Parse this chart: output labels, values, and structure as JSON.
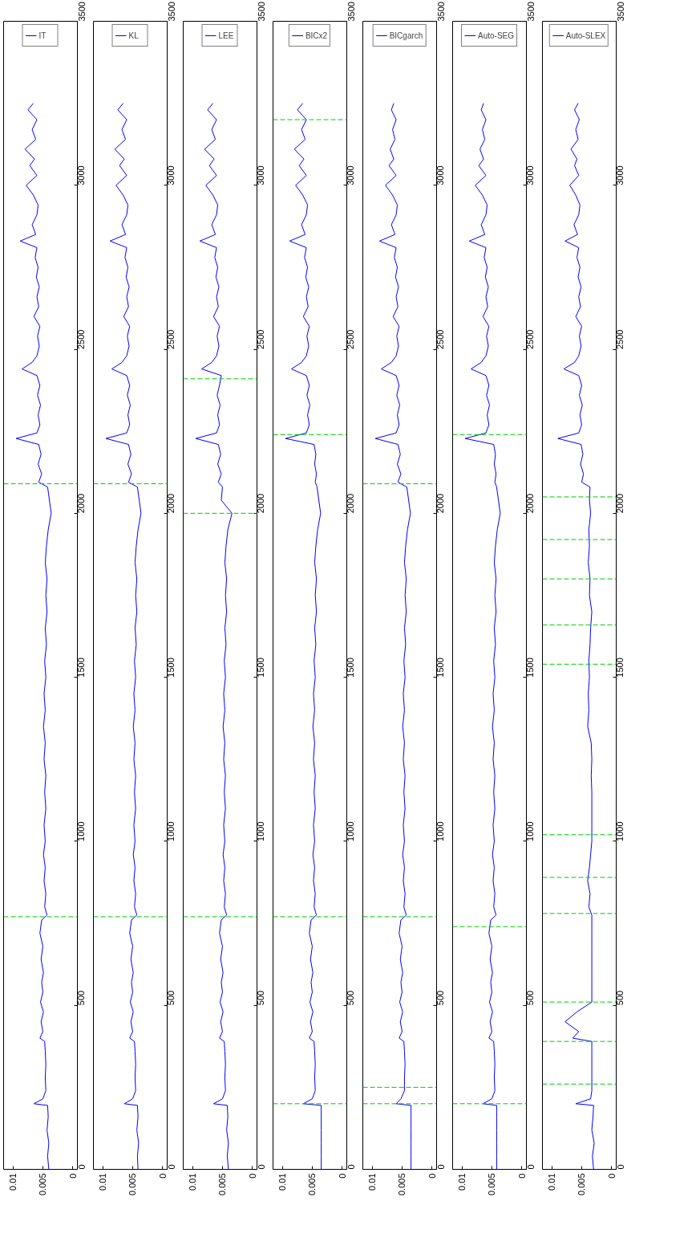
{
  "chart_data": [
    {
      "type": "line",
      "series": [
        {
          "name": "IT",
          "color": "#0000ff",
          "x": [
            0.004,
            0.0042,
            0.004,
            0.0043,
            0.0041,
            0.0042,
            0.0065,
            0.005,
            0.0045,
            0.0046,
            0.0045,
            0.0046,
            0.0047,
            0.0055,
            0.005,
            0.0053,
            0.0049,
            0.0054,
            0.005,
            0.0052,
            0.0049,
            0.0053,
            0.005,
            0.0055,
            0.0052,
            0.0043,
            0.0047,
            0.0045,
            0.0048,
            0.0046,
            0.0049,
            0.0046,
            0.0048,
            0.0045,
            0.0047,
            0.0045,
            0.0048,
            0.0046,
            0.0049,
            0.0046,
            0.0048,
            0.0045,
            0.0047,
            0.0044,
            0.0046,
            0.0043,
            0.0045,
            0.0043,
            0.0046,
            0.0044,
            0.0041,
            0.0036,
            0.0039,
            0.0042,
            0.0057,
            0.0052,
            0.0058,
            0.0053,
            0.0057,
            0.0095,
            0.006,
            0.0055,
            0.0058,
            0.0054,
            0.0059,
            0.0055,
            0.006,
            0.0085,
            0.0068,
            0.006,
            0.0056,
            0.0059,
            0.0055,
            0.0065,
            0.0057,
            0.006,
            0.0056,
            0.0061,
            0.0058,
            0.0063,
            0.006,
            0.0088,
            0.0062,
            0.0068,
            0.006,
            0.0058,
            0.0066,
            0.0078,
            0.006,
            0.0072,
            0.0064,
            0.008,
            0.0062,
            0.0068,
            0.006,
            0.0075,
            0.0066
          ],
          "values": [
            0,
            40,
            80,
            120,
            160,
            195,
            200,
            215,
            240,
            280,
            320,
            360,
            390,
            400,
            420,
            450,
            480,
            510,
            540,
            570,
            600,
            640,
            680,
            720,
            760,
            775,
            800,
            840,
            880,
            920,
            960,
            1000,
            1050,
            1100,
            1150,
            1200,
            1250,
            1300,
            1350,
            1400,
            1450,
            1500,
            1550,
            1600,
            1650,
            1700,
            1750,
            1800,
            1850,
            1900,
            1950,
            2000,
            2040,
            2080,
            2095,
            2120,
            2150,
            2180,
            2210,
            2228,
            2245,
            2270,
            2300,
            2330,
            2360,
            2390,
            2420,
            2440,
            2460,
            2480,
            2510,
            2540,
            2570,
            2600,
            2630,
            2660,
            2690,
            2720,
            2750,
            2780,
            2810,
            2830,
            2850,
            2880,
            2910,
            2940,
            2970,
            3000,
            3030,
            3060,
            3080,
            3110,
            3140,
            3170,
            3200,
            3230,
            3250
          ]
        }
      ],
      "xlim": [
        0.0116,
        -0.0008
      ],
      "xticks": [
        0.01,
        0.005,
        0
      ],
      "ylim": [
        0,
        3500
      ],
      "yticks": [
        0,
        500,
        1000,
        1500,
        2000,
        2500,
        3000,
        3500
      ],
      "ref_lines": [
        {
          "axis": "y",
          "value": 770,
          "color": "#00cc00",
          "line_style": "dashed"
        },
        {
          "axis": "y",
          "value": 2090,
          "color": "#00cc00",
          "line_style": "dashed"
        }
      ],
      "legend": "top",
      "line_style": "solid"
    },
    {
      "type": "line",
      "series": [
        {
          "name": "KL",
          "color": "#0000ff",
          "x": [
            0.0041,
            0.0042,
            0.004,
            0.0043,
            0.0041,
            0.0042,
            0.0064,
            0.005,
            0.0045,
            0.0046,
            0.0045,
            0.0046,
            0.0047,
            0.0055,
            0.005,
            0.0053,
            0.0049,
            0.0054,
            0.005,
            0.0052,
            0.0049,
            0.0053,
            0.005,
            0.0055,
            0.0052,
            0.0043,
            0.0047,
            0.0045,
            0.0048,
            0.0046,
            0.0049,
            0.0046,
            0.0048,
            0.0045,
            0.0047,
            0.0045,
            0.0048,
            0.0046,
            0.0049,
            0.0046,
            0.0048,
            0.0045,
            0.0047,
            0.0044,
            0.0046,
            0.0043,
            0.0045,
            0.0043,
            0.0046,
            0.0044,
            0.0041,
            0.0036,
            0.0039,
            0.0042,
            0.0057,
            0.0052,
            0.0058,
            0.0053,
            0.0057,
            0.0095,
            0.006,
            0.0055,
            0.0058,
            0.0054,
            0.0059,
            0.0055,
            0.006,
            0.0085,
            0.0068,
            0.006,
            0.0056,
            0.0059,
            0.0055,
            0.0065,
            0.0057,
            0.006,
            0.0056,
            0.0061,
            0.0058,
            0.0063,
            0.006,
            0.0088,
            0.0062,
            0.0068,
            0.006,
            0.0058,
            0.0066,
            0.0078,
            0.006,
            0.0072,
            0.0064,
            0.008,
            0.0062,
            0.0068,
            0.006,
            0.0075,
            0.0066
          ],
          "values": [
            0,
            40,
            80,
            120,
            160,
            195,
            200,
            215,
            240,
            280,
            320,
            360,
            390,
            400,
            420,
            450,
            480,
            510,
            540,
            570,
            600,
            640,
            680,
            720,
            760,
            775,
            800,
            840,
            880,
            920,
            960,
            1000,
            1050,
            1100,
            1150,
            1200,
            1250,
            1300,
            1350,
            1400,
            1450,
            1500,
            1550,
            1600,
            1650,
            1700,
            1750,
            1800,
            1850,
            1900,
            1950,
            2000,
            2040,
            2080,
            2095,
            2120,
            2150,
            2180,
            2210,
            2228,
            2245,
            2270,
            2300,
            2330,
            2360,
            2390,
            2420,
            2440,
            2460,
            2480,
            2510,
            2540,
            2570,
            2600,
            2630,
            2660,
            2690,
            2720,
            2750,
            2780,
            2810,
            2830,
            2850,
            2880,
            2910,
            2940,
            2970,
            3000,
            3030,
            3060,
            3080,
            3110,
            3140,
            3170,
            3200,
            3230,
            3250
          ]
        }
      ],
      "xlim": [
        0.0116,
        -0.0008
      ],
      "xticks": [
        0.01,
        0.005,
        0
      ],
      "ylim": [
        0,
        3500
      ],
      "yticks": [
        0,
        500,
        1000,
        1500,
        2000,
        2500,
        3000,
        3500
      ],
      "ref_lines": [
        {
          "axis": "y",
          "value": 770,
          "color": "#00cc00",
          "line_style": "dashed"
        },
        {
          "axis": "y",
          "value": 2090,
          "color": "#00cc00",
          "line_style": "dashed"
        }
      ],
      "legend": "top",
      "line_style": "solid"
    },
    {
      "type": "line",
      "series": [
        {
          "name": "LEE",
          "color": "#0000ff",
          "x": [
            0.004,
            0.0042,
            0.004,
            0.0043,
            0.0041,
            0.0042,
            0.0065,
            0.005,
            0.0045,
            0.0046,
            0.0045,
            0.0046,
            0.0047,
            0.0055,
            0.005,
            0.0053,
            0.0049,
            0.0054,
            0.005,
            0.0052,
            0.0049,
            0.0053,
            0.005,
            0.0055,
            0.0052,
            0.0043,
            0.0047,
            0.0045,
            0.0048,
            0.0046,
            0.0049,
            0.0046,
            0.0048,
            0.0045,
            0.0047,
            0.0045,
            0.0048,
            0.0046,
            0.0049,
            0.0046,
            0.0048,
            0.0045,
            0.0047,
            0.0044,
            0.0046,
            0.0043,
            0.0045,
            0.0043,
            0.0046,
            0.0044,
            0.0041,
            0.0034,
            0.0052,
            0.005,
            0.0057,
            0.0052,
            0.0058,
            0.0053,
            0.0057,
            0.0095,
            0.006,
            0.0055,
            0.0058,
            0.0054,
            0.0059,
            0.0055,
            0.0052,
            0.0085,
            0.0068,
            0.006,
            0.0056,
            0.0059,
            0.0055,
            0.0065,
            0.0057,
            0.006,
            0.0056,
            0.0061,
            0.0058,
            0.0063,
            0.006,
            0.0088,
            0.0062,
            0.0068,
            0.006,
            0.0058,
            0.0066,
            0.0078,
            0.006,
            0.0072,
            0.0064,
            0.008,
            0.0062,
            0.0068,
            0.006,
            0.0075,
            0.0066
          ],
          "values": [
            0,
            40,
            80,
            120,
            160,
            195,
            200,
            215,
            240,
            280,
            320,
            360,
            390,
            400,
            420,
            450,
            480,
            510,
            540,
            570,
            600,
            640,
            680,
            720,
            760,
            775,
            800,
            840,
            880,
            920,
            960,
            1000,
            1050,
            1100,
            1150,
            1200,
            1250,
            1300,
            1350,
            1400,
            1450,
            1500,
            1550,
            1600,
            1650,
            1700,
            1750,
            1800,
            1850,
            1900,
            1950,
            2000,
            2040,
            2080,
            2095,
            2120,
            2150,
            2180,
            2210,
            2228,
            2245,
            2270,
            2300,
            2330,
            2360,
            2390,
            2420,
            2440,
            2460,
            2480,
            2510,
            2540,
            2570,
            2600,
            2630,
            2660,
            2690,
            2720,
            2750,
            2780,
            2810,
            2830,
            2850,
            2880,
            2910,
            2940,
            2970,
            3000,
            3030,
            3060,
            3080,
            3110,
            3140,
            3170,
            3200,
            3230,
            3250
          ]
        }
      ],
      "xlim": [
        0.0116,
        -0.0008
      ],
      "xticks": [
        0.01,
        0.005,
        0
      ],
      "ylim": [
        0,
        3500
      ],
      "yticks": [
        0,
        500,
        1000,
        1500,
        2000,
        2500,
        3000,
        3500
      ],
      "ref_lines": [
        {
          "axis": "y",
          "value": 770,
          "color": "#00cc00",
          "line_style": "dashed"
        },
        {
          "axis": "y",
          "value": 2000,
          "color": "#00cc00",
          "line_style": "dashed"
        },
        {
          "axis": "y",
          "value": 2410,
          "color": "#00cc00",
          "line_style": "dashed"
        }
      ],
      "legend": "top",
      "line_style": "solid"
    },
    {
      "type": "line",
      "series": [
        {
          "name": "BICx2",
          "color": "#0000ff",
          "x": [
            0.0035,
            0.0035,
            0.0035,
            0.0035,
            0.0035,
            0.0035,
            0.0065,
            0.005,
            0.0045,
            0.0046,
            0.0045,
            0.0046,
            0.0047,
            0.0055,
            0.005,
            0.0053,
            0.0049,
            0.0054,
            0.005,
            0.0052,
            0.0049,
            0.0053,
            0.005,
            0.0055,
            0.0052,
            0.0043,
            0.0047,
            0.0045,
            0.0048,
            0.0046,
            0.0049,
            0.0046,
            0.0048,
            0.0045,
            0.0047,
            0.0045,
            0.0048,
            0.0046,
            0.0049,
            0.0046,
            0.0048,
            0.0045,
            0.0047,
            0.0044,
            0.0046,
            0.0043,
            0.0045,
            0.0043,
            0.0046,
            0.0044,
            0.0041,
            0.0036,
            0.0039,
            0.0042,
            0.0045,
            0.0043,
            0.0046,
            0.0044,
            0.0047,
            0.0095,
            0.006,
            0.0055,
            0.0058,
            0.0054,
            0.0059,
            0.0055,
            0.006,
            0.0085,
            0.0068,
            0.006,
            0.0056,
            0.0059,
            0.0055,
            0.0065,
            0.0057,
            0.006,
            0.0056,
            0.0061,
            0.0058,
            0.0063,
            0.006,
            0.0088,
            0.0062,
            0.0068,
            0.006,
            0.0058,
            0.0066,
            0.0078,
            0.006,
            0.0072,
            0.0064,
            0.008,
            0.0062,
            0.0068,
            0.006,
            0.0075,
            0.0066
          ],
          "values": [
            0,
            40,
            80,
            120,
            160,
            195,
            200,
            215,
            240,
            280,
            320,
            360,
            390,
            400,
            420,
            450,
            480,
            510,
            540,
            570,
            600,
            640,
            680,
            720,
            760,
            775,
            800,
            840,
            880,
            920,
            960,
            1000,
            1050,
            1100,
            1150,
            1200,
            1250,
            1300,
            1350,
            1400,
            1450,
            1500,
            1550,
            1600,
            1650,
            1700,
            1750,
            1800,
            1850,
            1900,
            1950,
            2000,
            2040,
            2080,
            2095,
            2120,
            2150,
            2180,
            2210,
            2228,
            2245,
            2270,
            2300,
            2330,
            2360,
            2390,
            2420,
            2440,
            2460,
            2480,
            2510,
            2540,
            2570,
            2600,
            2630,
            2660,
            2690,
            2720,
            2750,
            2780,
            2810,
            2830,
            2850,
            2880,
            2910,
            2940,
            2970,
            3000,
            3030,
            3060,
            3080,
            3110,
            3140,
            3170,
            3200,
            3230,
            3250
          ]
        }
      ],
      "xlim": [
        0.0116,
        -0.0008
      ],
      "xticks": [
        0.01,
        0.005,
        0
      ],
      "ylim": [
        0,
        3500
      ],
      "yticks": [
        0,
        500,
        1000,
        1500,
        2000,
        2500,
        3000,
        3500
      ],
      "ref_lines": [
        {
          "axis": "y",
          "value": 200,
          "color": "#00cc00",
          "line_style": "dashed"
        },
        {
          "axis": "y",
          "value": 770,
          "color": "#00cc00",
          "line_style": "dashed"
        },
        {
          "axis": "y",
          "value": 2240,
          "color": "#00cc00",
          "line_style": "dashed"
        },
        {
          "axis": "y",
          "value": 3200,
          "color": "#00cc00",
          "line_style": "dashed"
        }
      ],
      "legend": "top",
      "line_style": "solid"
    },
    {
      "type": "line",
      "series": [
        {
          "name": "BICgarch",
          "color": "#0000ff",
          "x": [
            0.0035,
            0.0035,
            0.0035,
            0.0035,
            0.0035,
            0.0035,
            0.006,
            0.0052,
            0.0046,
            0.0046,
            0.0045,
            0.0046,
            0.0047,
            0.0055,
            0.005,
            0.0053,
            0.0049,
            0.0054,
            0.005,
            0.0052,
            0.0049,
            0.0053,
            0.005,
            0.0055,
            0.0052,
            0.0043,
            0.0047,
            0.0045,
            0.0048,
            0.0046,
            0.0049,
            0.0046,
            0.0048,
            0.0045,
            0.0047,
            0.0045,
            0.0048,
            0.0046,
            0.0049,
            0.0046,
            0.0048,
            0.0045,
            0.0047,
            0.0044,
            0.0046,
            0.0043,
            0.0045,
            0.0043,
            0.0046,
            0.0044,
            0.0041,
            0.0036,
            0.0039,
            0.0042,
            0.0057,
            0.0052,
            0.0058,
            0.0053,
            0.0057,
            0.0095,
            0.006,
            0.0055,
            0.0058,
            0.0054,
            0.0059,
            0.0055,
            0.006,
            0.0085,
            0.0068,
            0.006,
            0.0056,
            0.0059,
            0.0055,
            0.0065,
            0.0057,
            0.006,
            0.0056,
            0.0061,
            0.0058,
            0.0063,
            0.006,
            0.0088,
            0.0062,
            0.0068,
            0.006,
            0.0058,
            0.0066,
            0.0078,
            0.006,
            0.0072,
            0.0064,
            0.007,
            0.0062,
            0.0066,
            0.006,
            0.0068,
            0.0064
          ],
          "values": [
            0,
            40,
            80,
            120,
            160,
            195,
            200,
            215,
            240,
            280,
            320,
            360,
            390,
            400,
            420,
            450,
            480,
            510,
            540,
            570,
            600,
            640,
            680,
            720,
            760,
            775,
            800,
            840,
            880,
            920,
            960,
            1000,
            1050,
            1100,
            1150,
            1200,
            1250,
            1300,
            1350,
            1400,
            1450,
            1500,
            1550,
            1600,
            1650,
            1700,
            1750,
            1800,
            1850,
            1900,
            1950,
            2000,
            2040,
            2080,
            2095,
            2120,
            2150,
            2180,
            2210,
            2228,
            2245,
            2270,
            2300,
            2330,
            2360,
            2390,
            2420,
            2440,
            2460,
            2480,
            2510,
            2540,
            2570,
            2600,
            2630,
            2660,
            2690,
            2720,
            2750,
            2780,
            2810,
            2830,
            2850,
            2880,
            2910,
            2940,
            2970,
            3000,
            3030,
            3060,
            3080,
            3110,
            3140,
            3170,
            3200,
            3230,
            3250
          ]
        }
      ],
      "xlim": [
        0.0116,
        -0.0008
      ],
      "xticks": [
        0.01,
        0.005,
        0
      ],
      "ylim": [
        0,
        3500
      ],
      "yticks": [
        0,
        500,
        1000,
        1500,
        2000,
        2500,
        3000,
        3500
      ],
      "ref_lines": [
        {
          "axis": "y",
          "value": 200,
          "color": "#00cc00",
          "line_style": "dashed"
        },
        {
          "axis": "y",
          "value": 250,
          "color": "#00cc00",
          "line_style": "dashed"
        },
        {
          "axis": "y",
          "value": 770,
          "color": "#00cc00",
          "line_style": "dashed"
        },
        {
          "axis": "y",
          "value": 2090,
          "color": "#00cc00",
          "line_style": "dashed"
        }
      ],
      "legend": "top",
      "line_style": "solid"
    },
    {
      "type": "line",
      "series": [
        {
          "name": "Auto-SEG",
          "color": "#0000ff",
          "x": [
            0.0042,
            0.0042,
            0.0042,
            0.0042,
            0.0042,
            0.0042,
            0.0065,
            0.005,
            0.0045,
            0.0046,
            0.0045,
            0.0046,
            0.0047,
            0.0055,
            0.005,
            0.0053,
            0.0049,
            0.0054,
            0.005,
            0.0052,
            0.0049,
            0.0053,
            0.005,
            0.0055,
            0.0052,
            0.0043,
            0.0047,
            0.0045,
            0.0048,
            0.0046,
            0.0049,
            0.0046,
            0.0048,
            0.0045,
            0.0047,
            0.0045,
            0.0048,
            0.0046,
            0.0049,
            0.0046,
            0.0048,
            0.0045,
            0.0047,
            0.0044,
            0.0046,
            0.0043,
            0.0045,
            0.0043,
            0.0046,
            0.0044,
            0.0041,
            0.0036,
            0.0039,
            0.0042,
            0.0045,
            0.0043,
            0.0046,
            0.0044,
            0.0047,
            0.0095,
            0.006,
            0.0055,
            0.0058,
            0.0054,
            0.0059,
            0.0055,
            0.006,
            0.0085,
            0.0068,
            0.006,
            0.0056,
            0.0059,
            0.0055,
            0.0065,
            0.0057,
            0.006,
            0.0056,
            0.0061,
            0.0058,
            0.0063,
            0.006,
            0.0088,
            0.0062,
            0.0068,
            0.006,
            0.0058,
            0.0066,
            0.0078,
            0.006,
            0.0072,
            0.0064,
            0.007,
            0.0062,
            0.0066,
            0.006,
            0.0068,
            0.0064
          ],
          "values": [
            0,
            40,
            80,
            120,
            160,
            195,
            200,
            215,
            240,
            280,
            320,
            360,
            390,
            400,
            420,
            450,
            480,
            510,
            540,
            570,
            600,
            640,
            680,
            720,
            760,
            775,
            800,
            840,
            880,
            920,
            960,
            1000,
            1050,
            1100,
            1150,
            1200,
            1250,
            1300,
            1350,
            1400,
            1450,
            1500,
            1550,
            1600,
            1650,
            1700,
            1750,
            1800,
            1850,
            1900,
            1950,
            2000,
            2040,
            2080,
            2095,
            2120,
            2150,
            2180,
            2210,
            2228,
            2245,
            2270,
            2300,
            2330,
            2360,
            2390,
            2420,
            2440,
            2460,
            2480,
            2510,
            2540,
            2570,
            2600,
            2630,
            2660,
            2690,
            2720,
            2750,
            2780,
            2810,
            2830,
            2850,
            2880,
            2910,
            2940,
            2970,
            3000,
            3030,
            3060,
            3080,
            3110,
            3140,
            3170,
            3200,
            3230,
            3250
          ]
        }
      ],
      "xlim": [
        0.0116,
        -0.0008
      ],
      "xticks": [
        0.01,
        0.005,
        0
      ],
      "ylim": [
        0,
        3500
      ],
      "yticks": [
        0,
        500,
        1000,
        1500,
        2000,
        2500,
        3000,
        3500
      ],
      "ref_lines": [
        {
          "axis": "y",
          "value": 200,
          "color": "#00cc00",
          "line_style": "dashed"
        },
        {
          "axis": "y",
          "value": 740,
          "color": "#00cc00",
          "line_style": "dashed"
        },
        {
          "axis": "y",
          "value": 2240,
          "color": "#00cc00",
          "line_style": "dashed"
        }
      ],
      "legend": "top",
      "line_style": "solid"
    },
    {
      "type": "line",
      "series": [
        {
          "name": "Auto-SLEX",
          "color": "#0000ff",
          "x": [
            0.003,
            0.0032,
            0.0029,
            0.0033,
            0.0031,
            0.003,
            0.006,
            0.0035,
            0.0033,
            0.0033,
            0.0033,
            0.0033,
            0.0033,
            0.0065,
            0.0055,
            0.0078,
            0.0058,
            0.0033,
            0.0033,
            0.0033,
            0.0033,
            0.0033,
            0.0033,
            0.0033,
            0.0033,
            0.0033,
            0.0038,
            0.0036,
            0.004,
            0.0037,
            0.0035,
            0.0033,
            0.0033,
            0.0033,
            0.0033,
            0.0034,
            0.0033,
            0.0034,
            0.004,
            0.0038,
            0.0039,
            0.0037,
            0.0038,
            0.0036,
            0.0035,
            0.0033,
            0.0037,
            0.0036,
            0.0039,
            0.0037,
            0.0038,
            0.0035,
            0.0037,
            0.0036,
            0.005,
            0.0047,
            0.0052,
            0.0048,
            0.0051,
            0.009,
            0.0055,
            0.005,
            0.0053,
            0.0049,
            0.0054,
            0.005,
            0.0055,
            0.008,
            0.0062,
            0.0055,
            0.0051,
            0.0054,
            0.005,
            0.006,
            0.0052,
            0.0055,
            0.0051,
            0.0056,
            0.0053,
            0.0058,
            0.0055,
            0.0078,
            0.0057,
            0.0063,
            0.0055,
            0.0053,
            0.006,
            0.007,
            0.0055,
            0.0062,
            0.0058,
            0.0068,
            0.0056,
            0.006,
            0.0054,
            0.0062,
            0.0056
          ],
          "values": [
            0,
            40,
            80,
            120,
            160,
            195,
            200,
            215,
            240,
            280,
            320,
            360,
            390,
            400,
            420,
            450,
            480,
            510,
            540,
            570,
            600,
            640,
            680,
            720,
            760,
            775,
            800,
            840,
            880,
            920,
            960,
            1000,
            1050,
            1100,
            1150,
            1200,
            1250,
            1300,
            1350,
            1400,
            1450,
            1500,
            1550,
            1600,
            1650,
            1700,
            1750,
            1800,
            1850,
            1900,
            1950,
            2000,
            2040,
            2080,
            2095,
            2120,
            2150,
            2180,
            2210,
            2228,
            2245,
            2270,
            2300,
            2330,
            2360,
            2390,
            2420,
            2440,
            2460,
            2480,
            2510,
            2540,
            2570,
            2600,
            2630,
            2660,
            2690,
            2720,
            2750,
            2780,
            2810,
            2830,
            2850,
            2880,
            2910,
            2940,
            2970,
            3000,
            3030,
            3060,
            3080,
            3110,
            3140,
            3170,
            3200,
            3230,
            3250
          ]
        }
      ],
      "xlim": [
        0.0116,
        -0.0008
      ],
      "xticks": [
        0.01,
        0.005,
        0
      ],
      "ylim": [
        0,
        3500
      ],
      "yticks": [
        0,
        500,
        1000,
        1500,
        2000,
        2500,
        3000,
        3500
      ],
      "ref_lines": [
        {
          "axis": "y",
          "value": 260,
          "color": "#00cc00",
          "line_style": "dashed"
        },
        {
          "axis": "y",
          "value": 390,
          "color": "#00cc00",
          "line_style": "dashed"
        },
        {
          "axis": "y",
          "value": 510,
          "color": "#00cc00",
          "line_style": "dashed"
        },
        {
          "axis": "y",
          "value": 780,
          "color": "#00cc00",
          "line_style": "dashed"
        },
        {
          "axis": "y",
          "value": 890,
          "color": "#00cc00",
          "line_style": "dashed"
        },
        {
          "axis": "y",
          "value": 1020,
          "color": "#00cc00",
          "line_style": "dashed"
        },
        {
          "axis": "y",
          "value": 1540,
          "color": "#00cc00",
          "line_style": "dashed"
        },
        {
          "axis": "y",
          "value": 1660,
          "color": "#00cc00",
          "line_style": "dashed"
        },
        {
          "axis": "y",
          "value": 1800,
          "color": "#00cc00",
          "line_style": "dashed"
        },
        {
          "axis": "y",
          "value": 1920,
          "color": "#00cc00",
          "line_style": "dashed"
        },
        {
          "axis": "y",
          "value": 2050,
          "color": "#00cc00",
          "line_style": "dashed"
        }
      ],
      "legend": "top",
      "line_style": "solid"
    }
  ]
}
